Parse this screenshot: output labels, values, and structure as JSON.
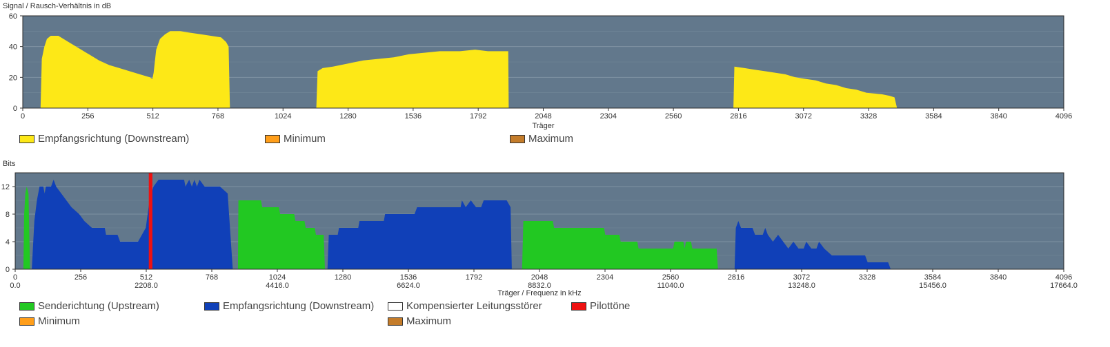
{
  "colors": {
    "plot_bg": "#62788c",
    "grid": "#7f92a3",
    "yellow": "#fde817",
    "green": "#22c822",
    "blue": "#1040b8",
    "red": "#ee1111",
    "orange": "#ff9e1a",
    "brown": "#c47c2a",
    "white": "#ffffff"
  },
  "chart_data": [
    {
      "type": "area",
      "title": "",
      "ylabel": "Signal / Rausch-Verhältnis in dB",
      "xlabel": "Träger",
      "xlim": [
        0,
        4096
      ],
      "ylim": [
        0,
        60
      ],
      "y_ticks": [
        "0",
        "20",
        "40",
        "60"
      ],
      "x_ticks": [
        "0",
        "256",
        "512",
        "768",
        "1024",
        "1280",
        "1536",
        "1792",
        "2048",
        "2304",
        "2560",
        "2816",
        "3072",
        "3328",
        "3584",
        "3840",
        "4096"
      ],
      "grid": true,
      "legend_position": "bottom-left",
      "series": [
        {
          "name": "Empfangsrichtung (Downstream)",
          "color": "#fde817",
          "points": [
            [
              70,
              0
            ],
            [
              75,
              32
            ],
            [
              85,
              40
            ],
            [
              95,
              45
            ],
            [
              110,
              47
            ],
            [
              140,
              47
            ],
            [
              180,
              43
            ],
            [
              220,
              39
            ],
            [
              260,
              35
            ],
            [
              300,
              31
            ],
            [
              340,
              28
            ],
            [
              380,
              26
            ],
            [
              420,
              24
            ],
            [
              460,
              22
            ],
            [
              500,
              20
            ],
            [
              510,
              19
            ],
            [
              515,
              23
            ],
            [
              525,
              38
            ],
            [
              540,
              45
            ],
            [
              560,
              48
            ],
            [
              580,
              50
            ],
            [
              620,
              50
            ],
            [
              660,
              49
            ],
            [
              700,
              48
            ],
            [
              740,
              47
            ],
            [
              780,
              46
            ],
            [
              800,
              43
            ],
            [
              810,
              40
            ],
            [
              815,
              0
            ],
            [
              1155,
              0
            ],
            [
              1160,
              24
            ],
            [
              1180,
              26
            ],
            [
              1220,
              27
            ],
            [
              1280,
              29
            ],
            [
              1340,
              31
            ],
            [
              1400,
              32
            ],
            [
              1460,
              33
            ],
            [
              1520,
              35
            ],
            [
              1580,
              36
            ],
            [
              1640,
              37
            ],
            [
              1720,
              37
            ],
            [
              1780,
              38
            ],
            [
              1830,
              37
            ],
            [
              1890,
              37
            ],
            [
              1910,
              37
            ],
            [
              1912,
              0
            ],
            [
              2796,
              0
            ],
            [
              2800,
              27
            ],
            [
              2840,
              26
            ],
            [
              2880,
              25
            ],
            [
              2920,
              24
            ],
            [
              2960,
              23
            ],
            [
              3000,
              22
            ],
            [
              3040,
              20
            ],
            [
              3080,
              19
            ],
            [
              3120,
              18
            ],
            [
              3160,
              16
            ],
            [
              3200,
              15
            ],
            [
              3240,
              13
            ],
            [
              3280,
              12
            ],
            [
              3320,
              10
            ],
            [
              3380,
              9
            ],
            [
              3410,
              8
            ],
            [
              3430,
              7
            ],
            [
              3440,
              0
            ]
          ]
        },
        {
          "name": "Minimum",
          "color": "#ff9e1a",
          "points": []
        },
        {
          "name": "Maximum",
          "color": "#c47c2a",
          "points": []
        }
      ]
    },
    {
      "type": "area",
      "title": "",
      "ylabel": "Bits",
      "xlabel": "Träger / Frequenz in kHz",
      "xlim": [
        0,
        4096
      ],
      "ylim": [
        0,
        14
      ],
      "y_ticks": [
        "0",
        "4",
        "8",
        "12"
      ],
      "x_ticks": [
        "0",
        "256",
        "512",
        "768",
        "1024",
        "1280",
        "1536",
        "1792",
        "2048",
        "2304",
        "2560",
        "2816",
        "3072",
        "3328",
        "3584",
        "3840",
        "4096"
      ],
      "x_ticks2": [
        "0.0",
        "",
        "2208.0",
        "",
        "4416.0",
        "",
        "6624.0",
        "",
        "8832.0",
        "",
        "11040.0",
        "",
        "13248.0",
        "",
        "15456.0",
        "",
        "17664.0"
      ],
      "grid": true,
      "legend_position": "bottom-left",
      "series": [
        {
          "name": "Senderichtung (Upstream)",
          "color": "#22c822",
          "points": [
            [
              32,
              0
            ],
            [
              35,
              8
            ],
            [
              40,
              11
            ],
            [
              45,
              12
            ],
            [
              52,
              11
            ],
            [
              58,
              0
            ],
            [
              870,
              0
            ],
            [
              872,
              10
            ],
            [
              960,
              10
            ],
            [
              965,
              9
            ],
            [
              1030,
              9
            ],
            [
              1035,
              8
            ],
            [
              1090,
              8
            ],
            [
              1095,
              7
            ],
            [
              1130,
              7
            ],
            [
              1135,
              6
            ],
            [
              1170,
              6
            ],
            [
              1175,
              5
            ],
            [
              1205,
              5
            ],
            [
              1210,
              0
            ],
            [
              1980,
              0
            ],
            [
              1985,
              7
            ],
            [
              2100,
              7
            ],
            [
              2105,
              6
            ],
            [
              2300,
              6
            ],
            [
              2305,
              5
            ],
            [
              2360,
              5
            ],
            [
              2365,
              4
            ],
            [
              2430,
              4
            ],
            [
              2435,
              3
            ],
            [
              2570,
              3
            ],
            [
              2575,
              4
            ],
            [
              2610,
              4
            ],
            [
              2615,
              3
            ],
            [
              2620,
              4
            ],
            [
              2640,
              4
            ],
            [
              2645,
              3
            ],
            [
              2740,
              3
            ],
            [
              2745,
              0
            ]
          ]
        },
        {
          "name": "Empfangsrichtung (Downstream)",
          "color": "#1040b8",
          "points": [
            [
              65,
              0
            ],
            [
              75,
              7
            ],
            [
              85,
              10
            ],
            [
              95,
              12
            ],
            [
              110,
              12
            ],
            [
              115,
              11
            ],
            [
              120,
              12
            ],
            [
              140,
              12
            ],
            [
              150,
              13
            ],
            [
              160,
              12
            ],
            [
              180,
              11
            ],
            [
              200,
              10
            ],
            [
              220,
              9
            ],
            [
              250,
              8
            ],
            [
              270,
              7
            ],
            [
              300,
              6
            ],
            [
              350,
              6
            ],
            [
              355,
              5
            ],
            [
              400,
              5
            ],
            [
              410,
              4
            ],
            [
              450,
              4
            ],
            [
              480,
              4
            ],
            [
              510,
              6
            ],
            [
              525,
              10
            ],
            [
              540,
              12
            ],
            [
              560,
              13
            ],
            [
              660,
              13
            ],
            [
              665,
              12
            ],
            [
              680,
              13
            ],
            [
              690,
              12
            ],
            [
              700,
              13
            ],
            [
              710,
              12
            ],
            [
              720,
              13
            ],
            [
              740,
              12
            ],
            [
              800,
              12
            ],
            [
              830,
              11
            ],
            [
              850,
              0
            ],
            [
              1220,
              0
            ],
            [
              1225,
              5
            ],
            [
              1260,
              5
            ],
            [
              1265,
              6
            ],
            [
              1340,
              6
            ],
            [
              1345,
              7
            ],
            [
              1440,
              7
            ],
            [
              1445,
              8
            ],
            [
              1560,
              8
            ],
            [
              1570,
              9
            ],
            [
              1740,
              9
            ],
            [
              1745,
              10
            ],
            [
              1760,
              9
            ],
            [
              1780,
              10
            ],
            [
              1800,
              9
            ],
            [
              1820,
              9
            ],
            [
              1830,
              10
            ],
            [
              1920,
              10
            ],
            [
              1935,
              9
            ],
            [
              1940,
              0
            ],
            [
              2810,
              0
            ],
            [
              2815,
              6
            ],
            [
              2825,
              7
            ],
            [
              2835,
              6
            ],
            [
              2880,
              6
            ],
            [
              2890,
              5
            ],
            [
              2920,
              5
            ],
            [
              2930,
              6
            ],
            [
              2940,
              5
            ],
            [
              2960,
              4
            ],
            [
              2980,
              5
            ],
            [
              3000,
              4
            ],
            [
              3020,
              3
            ],
            [
              3040,
              4
            ],
            [
              3060,
              3
            ],
            [
              3080,
              3
            ],
            [
              3090,
              4
            ],
            [
              3110,
              3
            ],
            [
              3130,
              3
            ],
            [
              3140,
              4
            ],
            [
              3160,
              3
            ],
            [
              3190,
              2
            ],
            [
              3320,
              2
            ],
            [
              3330,
              1
            ],
            [
              3410,
              1
            ],
            [
              3420,
              0
            ]
          ]
        },
        {
          "name": "Kompensierter Leitungsstörer",
          "color": "#ffffff",
          "points": []
        },
        {
          "name": "Pilottöne",
          "color": "#ee1111",
          "points": [
            [
              522,
              0
            ],
            [
              522,
              14
            ],
            [
              536,
              14
            ],
            [
              536,
              0
            ]
          ]
        },
        {
          "name": "Minimum",
          "color": "#ff9e1a",
          "points": []
        },
        {
          "name": "Maximum",
          "color": "#c47c2a",
          "points": []
        }
      ]
    }
  ]
}
